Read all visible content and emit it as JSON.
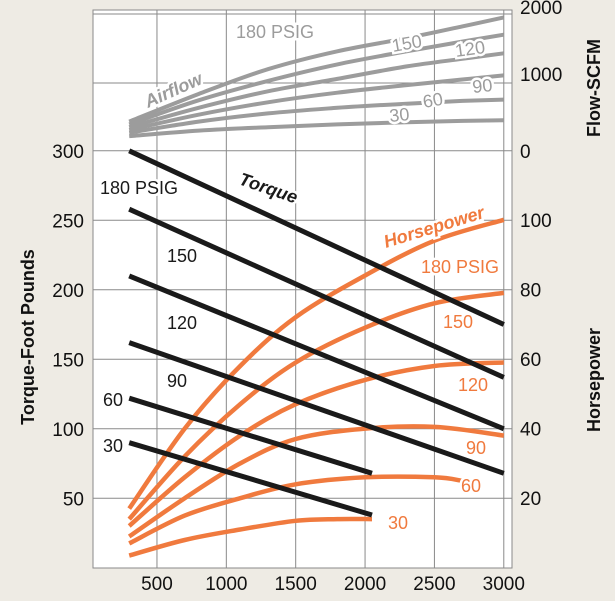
{
  "chart_data": {
    "type": "line",
    "title": "",
    "x": {
      "ticks": [
        500,
        1000,
        1500,
        2000,
        2500,
        3000
      ],
      "range": [
        0,
        3000
      ],
      "label": ""
    },
    "axes": {
      "torque": {
        "label": "Torque-Foot Pounds",
        "ticks": [
          50,
          100,
          150,
          200,
          250,
          300
        ],
        "range": [
          0,
          340
        ]
      },
      "horsepower": {
        "label": "Horsepower",
        "ticks": [
          20,
          40,
          60,
          80,
          100
        ],
        "range": [
          0,
          120
        ]
      },
      "flow": {
        "label": "Flow-SCFM",
        "ticks": [
          0,
          1000,
          2000
        ]
      }
    },
    "grid": true,
    "colors": {
      "torque": "#1a1a1a",
      "horsepower": "#f07a3e",
      "airflow": "#9c9c9c",
      "background": "#eeebe4",
      "plot_background": "#ffffff"
    },
    "group_labels": {
      "airflow": "Airflow",
      "torque": "Torque",
      "horsepower": "Horsepower"
    },
    "torque_series": [
      {
        "label": "180 PSIG",
        "points": [
          [
            300,
            300
          ],
          [
            3000,
            175
          ]
        ]
      },
      {
        "label": "150",
        "points": [
          [
            300,
            258
          ],
          [
            3000,
            137
          ]
        ]
      },
      {
        "label": "120",
        "points": [
          [
            300,
            210
          ],
          [
            3000,
            100
          ]
        ]
      },
      {
        "label": "90",
        "points": [
          [
            300,
            162
          ],
          [
            3000,
            68
          ]
        ]
      },
      {
        "label": "60",
        "points": [
          [
            300,
            122
          ],
          [
            2050,
            68
          ]
        ]
      },
      {
        "label": "30",
        "points": [
          [
            300,
            90
          ],
          [
            2050,
            38
          ]
        ]
      }
    ],
    "horsepower_series": [
      {
        "label": "180 PSIG",
        "points": [
          [
            300,
            17
          ],
          [
            700,
            40
          ],
          [
            1100,
            58
          ],
          [
            1500,
            72
          ],
          [
            2000,
            84
          ],
          [
            2500,
            94
          ],
          [
            3000,
            100
          ]
        ]
      },
      {
        "label": "150",
        "points": [
          [
            300,
            14
          ],
          [
            700,
            32
          ],
          [
            1100,
            47
          ],
          [
            1500,
            59
          ],
          [
            2000,
            69
          ],
          [
            2500,
            76
          ],
          [
            3000,
            79
          ]
        ]
      },
      {
        "label": "120",
        "points": [
          [
            300,
            12
          ],
          [
            700,
            26
          ],
          [
            1100,
            38
          ],
          [
            1500,
            47
          ],
          [
            2000,
            54
          ],
          [
            2500,
            58
          ],
          [
            3000,
            59
          ]
        ]
      },
      {
        "label": "90",
        "points": [
          [
            300,
            9
          ],
          [
            700,
            20
          ],
          [
            1100,
            30
          ],
          [
            1500,
            37
          ],
          [
            2000,
            40
          ],
          [
            2500,
            40.5
          ],
          [
            3000,
            38
          ]
        ]
      },
      {
        "label": "60",
        "points": [
          [
            300,
            7
          ],
          [
            700,
            15
          ],
          [
            1100,
            20
          ],
          [
            1500,
            24
          ],
          [
            2000,
            26
          ],
          [
            2500,
            26
          ],
          [
            2700,
            25
          ]
        ]
      },
      {
        "label": "30",
        "points": [
          [
            300,
            3.5
          ],
          [
            700,
            8
          ],
          [
            1100,
            11
          ],
          [
            1500,
            13.5
          ],
          [
            1800,
            14
          ],
          [
            2050,
            14
          ]
        ]
      }
    ],
    "airflow_series": [
      {
        "label": "180 PSIG",
        "points": [
          [
            300,
            440
          ],
          [
            800,
            840
          ],
          [
            1300,
            1200
          ],
          [
            1800,
            1460
          ],
          [
            2300,
            1650
          ],
          [
            2700,
            1820
          ],
          [
            3000,
            1950
          ]
        ]
      },
      {
        "label": "150",
        "points": [
          [
            300,
            400
          ],
          [
            800,
            750
          ],
          [
            1300,
            1030
          ],
          [
            1800,
            1270
          ],
          [
            2300,
            1460
          ],
          [
            2700,
            1600
          ],
          [
            3000,
            1700
          ]
        ]
      },
      {
        "label": "120",
        "points": [
          [
            300,
            360
          ],
          [
            800,
            640
          ],
          [
            1300,
            880
          ],
          [
            1800,
            1060
          ],
          [
            2300,
            1240
          ],
          [
            2700,
            1350
          ],
          [
            3000,
            1430
          ]
        ]
      },
      {
        "label": "90",
        "points": [
          [
            300,
            320
          ],
          [
            800,
            540
          ],
          [
            1300,
            720
          ],
          [
            1800,
            860
          ],
          [
            2300,
            970
          ],
          [
            2700,
            1050
          ],
          [
            3000,
            1110
          ]
        ]
      },
      {
        "label": "60",
        "points": [
          [
            300,
            280
          ],
          [
            800,
            440
          ],
          [
            1300,
            560
          ],
          [
            1800,
            640
          ],
          [
            2300,
            700
          ],
          [
            2700,
            740
          ],
          [
            3000,
            760
          ]
        ]
      },
      {
        "label": "30",
        "points": [
          [
            300,
            230
          ],
          [
            800,
            310
          ],
          [
            1300,
            360
          ],
          [
            1800,
            400
          ],
          [
            2300,
            430
          ],
          [
            2700,
            450
          ],
          [
            3000,
            460
          ]
        ]
      }
    ]
  }
}
